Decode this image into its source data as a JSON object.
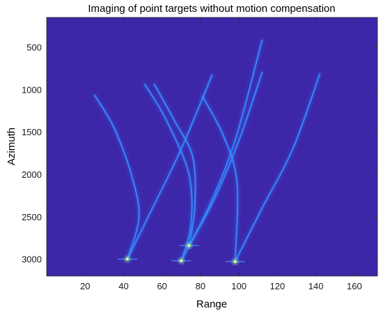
{
  "chart_data": {
    "type": "heatmap",
    "title": "Imaging of point targets without motion compensation",
    "xlabel": "Range",
    "ylabel": "Azimuth",
    "xlim": [
      0,
      172
    ],
    "ylim": [
      3200,
      150
    ],
    "y_reversed": true,
    "grid": false,
    "colormap": "parula",
    "x_ticks": [
      20,
      40,
      60,
      80,
      100,
      120,
      140,
      160
    ],
    "y_ticks": [
      500,
      1000,
      1500,
      2000,
      2500,
      3000
    ],
    "point_targets": [
      {
        "x": 42,
        "y": 3000
      },
      {
        "x": 70,
        "y": 3020
      },
      {
        "x": 74,
        "y": 2840
      },
      {
        "x": 98,
        "y": 3030
      }
    ],
    "trajectories": [
      {
        "points": [
          [
            25,
            1070
          ],
          [
            35,
            1450
          ],
          [
            44,
            2000
          ],
          [
            48,
            2500
          ],
          [
            42,
            3000
          ]
        ]
      },
      {
        "points": [
          [
            42,
            3000
          ],
          [
            55,
            2400
          ],
          [
            70,
            1700
          ],
          [
            86,
            830
          ]
        ]
      },
      {
        "points": [
          [
            51,
            940
          ],
          [
            62,
            1350
          ],
          [
            74,
            2000
          ],
          [
            75,
            2600
          ],
          [
            70,
            3020
          ]
        ]
      },
      {
        "points": [
          [
            56,
            940
          ],
          [
            66,
            1350
          ],
          [
            76,
            1800
          ],
          [
            77,
            2400
          ],
          [
            74,
            2840
          ]
        ]
      },
      {
        "points": [
          [
            70,
            3020
          ],
          [
            84,
            2400
          ],
          [
            98,
            1600
          ],
          [
            112,
            420
          ]
        ]
      },
      {
        "points": [
          [
            74,
            2840
          ],
          [
            87,
            2300
          ],
          [
            100,
            1600
          ],
          [
            112,
            800
          ]
        ]
      },
      {
        "points": [
          [
            81,
            1080
          ],
          [
            92,
            1550
          ],
          [
            99,
            2100
          ],
          [
            98,
            3030
          ]
        ]
      },
      {
        "points": [
          [
            98,
            3030
          ],
          [
            112,
            2400
          ],
          [
            128,
            1700
          ],
          [
            142,
            820
          ]
        ]
      }
    ]
  },
  "colors": {
    "background": "#3e26a8",
    "streak": "#3b8dff",
    "streak_glow": "#2f6cf0",
    "peak": "#9bf09a",
    "peak_core": "#fffb8a"
  }
}
